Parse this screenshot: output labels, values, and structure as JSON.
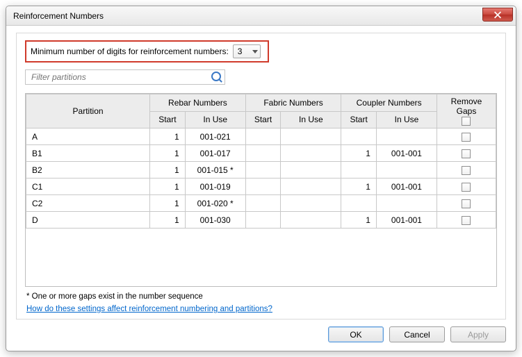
{
  "window": {
    "title": "Reinforcement Numbers"
  },
  "digits": {
    "label": "Minimum number of digits for reinforcement numbers:",
    "value": "3"
  },
  "filter": {
    "placeholder": "Filter partitions"
  },
  "headers": {
    "partition": "Partition",
    "rebar": "Rebar Numbers",
    "fabric": "Fabric Numbers",
    "coupler": "Coupler Numbers",
    "remove": "Remove Gaps",
    "start": "Start",
    "inuse": "In Use"
  },
  "rows": [
    {
      "partition": "A",
      "rebar_start": "1",
      "rebar_inuse": "001-021",
      "fabric_start": "",
      "fabric_inuse": "",
      "coupler_start": "",
      "coupler_inuse": ""
    },
    {
      "partition": "B1",
      "rebar_start": "1",
      "rebar_inuse": "001-017",
      "fabric_start": "",
      "fabric_inuse": "",
      "coupler_start": "1",
      "coupler_inuse": "001-001"
    },
    {
      "partition": "B2",
      "rebar_start": "1",
      "rebar_inuse": "001-015 *",
      "fabric_start": "",
      "fabric_inuse": "",
      "coupler_start": "",
      "coupler_inuse": ""
    },
    {
      "partition": "C1",
      "rebar_start": "1",
      "rebar_inuse": "001-019",
      "fabric_start": "",
      "fabric_inuse": "",
      "coupler_start": "1",
      "coupler_inuse": "001-001"
    },
    {
      "partition": "C2",
      "rebar_start": "1",
      "rebar_inuse": "001-020 *",
      "fabric_start": "",
      "fabric_inuse": "",
      "coupler_start": "",
      "coupler_inuse": ""
    },
    {
      "partition": "D",
      "rebar_start": "1",
      "rebar_inuse": "001-030",
      "fabric_start": "",
      "fabric_inuse": "",
      "coupler_start": "1",
      "coupler_inuse": "001-001"
    }
  ],
  "footnote": "* One or more gaps exist in the number sequence",
  "helplink": "How do these settings affect reinforcement numbering and partitions?",
  "buttons": {
    "ok": "OK",
    "cancel": "Cancel",
    "apply": "Apply"
  }
}
